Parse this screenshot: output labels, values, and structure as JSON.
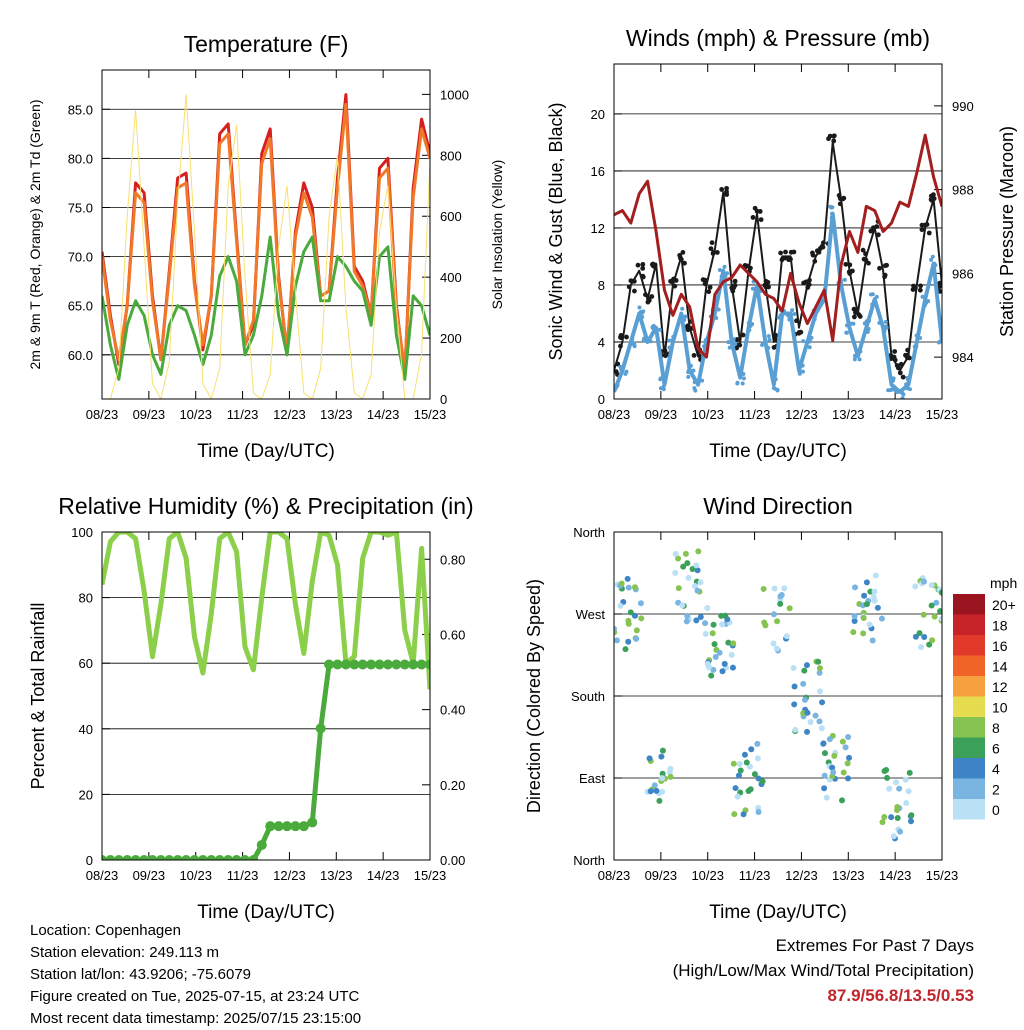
{
  "chart_data": [
    {
      "type": "line",
      "title": "Temperature (F)",
      "xlabel": "Time (Day/UTC)",
      "ylabel": "2m & 9m T (Red, Orange) & 2m Td (Green)",
      "y2label": "Solar Insolation (Yellow)",
      "x_ticks": [
        "08/23",
        "09/23",
        "10/23",
        "11/23",
        "12/23",
        "13/23",
        "14/23",
        "15/23"
      ],
      "ylim": [
        55.5,
        89.0
      ],
      "y_ticks": [
        "60.0",
        "65.0",
        "70.0",
        "75.0",
        "80.0",
        "85.0"
      ],
      "y2lim": [
        0,
        1080
      ],
      "y2_ticks": [
        "0",
        "200",
        "400",
        "600",
        "800",
        "1000"
      ],
      "grid": true,
      "series": [
        {
          "color": "#d62020",
          "values": [
            70.5,
            64.0,
            59.0,
            65.0,
            77.5,
            76.5,
            66.0,
            59.5,
            68.5,
            78.0,
            78.5,
            67.5,
            60.5,
            66.0,
            82.5,
            83.5,
            72.0,
            61.0,
            63.0,
            80.5,
            83.0,
            68.0,
            60.0,
            72.5,
            77.5,
            75.0,
            66.0,
            66.5,
            78.0,
            86.5,
            69.0,
            67.5,
            64.0,
            79.0,
            80.0,
            65.0,
            58.0,
            77.0,
            84.0,
            80.5
          ]
        },
        {
          "color": "#f07828",
          "values": [
            70.0,
            63.5,
            59.5,
            65.0,
            76.5,
            75.5,
            65.5,
            59.5,
            68.0,
            77.0,
            77.5,
            67.0,
            61.0,
            66.0,
            81.5,
            82.5,
            71.5,
            61.0,
            63.5,
            79.5,
            82.0,
            67.5,
            60.5,
            72.0,
            76.5,
            74.0,
            66.0,
            66.5,
            77.0,
            85.5,
            68.5,
            67.0,
            64.0,
            78.0,
            79.0,
            64.5,
            58.5,
            76.0,
            83.0,
            80.0
          ]
        },
        {
          "color": "#4aaa3c",
          "values": [
            66.0,
            61.0,
            57.5,
            63.0,
            65.5,
            64.0,
            60.0,
            58.0,
            63.0,
            65.0,
            64.5,
            62.0,
            59.0,
            62.0,
            68.0,
            70.0,
            67.5,
            60.0,
            62.0,
            66.0,
            72.0,
            64.0,
            60.0,
            67.0,
            70.5,
            72.0,
            65.5,
            65.5,
            70.0,
            69.0,
            67.5,
            66.5,
            63.0,
            70.0,
            71.0,
            62.0,
            57.5,
            66.0,
            65.0,
            62.0
          ]
        },
        {
          "color": "#f7e070",
          "axis": "right",
          "values": [
            0,
            0,
            100,
            600,
            950,
            500,
            50,
            0,
            120,
            650,
            1000,
            550,
            50,
            0,
            100,
            700,
            900,
            400,
            20,
            0,
            80,
            500,
            700,
            350,
            20,
            0,
            100,
            600,
            800,
            300,
            20,
            0,
            80,
            550,
            700,
            300,
            0,
            0,
            150,
            780
          ]
        }
      ]
    },
    {
      "type": "scatter",
      "title": "Winds (mph) & Pressure (mb)",
      "xlabel": "Time (Day/UTC)",
      "ylabel": "Sonic Wind & Gust (Blue, Black)",
      "y2label": "Station Pressure (Maroon)",
      "x_ticks": [
        "08/23",
        "09/23",
        "10/23",
        "11/23",
        "12/23",
        "13/23",
        "14/23",
        "15/23"
      ],
      "ylim": [
        0,
        23.5
      ],
      "y_ticks": [
        "0",
        "4",
        "8",
        "12",
        "16",
        "20"
      ],
      "y2lim": [
        983.0,
        991.0
      ],
      "y2_ticks": [
        "984",
        "986",
        "988",
        "990"
      ],
      "grid": true,
      "series": [
        {
          "color": "#1a1a1a",
          "values": [
            2.0,
            4.0,
            8.0,
            9.0,
            7.0,
            9.5,
            3.0,
            8.0,
            10.0,
            5.0,
            3.0,
            8.0,
            10.5,
            14.5,
            8.0,
            4.0,
            9.0,
            13.0,
            8.0,
            4.0,
            10.0,
            10.0,
            5.0,
            8.0,
            10.0,
            11.0,
            18.0,
            14.0,
            9.0,
            6.0,
            10.0,
            12.0,
            9.0,
            3.0,
            2.0,
            3.0,
            8.0,
            12.0,
            14.0,
            8.0
          ]
        },
        {
          "color": "#5a9fd4",
          "values": [
            0.5,
            2.0,
            4.0,
            6.0,
            4.0,
            5.0,
            1.0,
            4.0,
            6.0,
            2.0,
            1.0,
            4.0,
            6.0,
            9.0,
            4.0,
            1.5,
            5.0,
            8.0,
            4.0,
            1.0,
            6.0,
            6.0,
            2.0,
            4.0,
            6.0,
            7.0,
            13.0,
            8.0,
            5.0,
            3.0,
            5.0,
            7.0,
            5.0,
            1.0,
            0.5,
            1.0,
            4.0,
            7.0,
            9.5,
            4.0
          ]
        },
        {
          "color": "#a31e1e",
          "axis": "right",
          "values": [
            987.4,
            987.5,
            987.2,
            987.9,
            988.2,
            987.0,
            985.6,
            985.0,
            985.5,
            985.2,
            984.2,
            984.0,
            985.5,
            985.8,
            985.9,
            986.2,
            986.0,
            985.8,
            985.5,
            985.4,
            985.1,
            986.0,
            985.3,
            984.8,
            985.2,
            985.6,
            984.4,
            986.2,
            987.0,
            986.5,
            987.6,
            987.5,
            987.0,
            987.2,
            987.7,
            987.6,
            988.4,
            989.3,
            988.3,
            987.6
          ]
        }
      ]
    },
    {
      "type": "line",
      "title": "Relative Humidity (%) & Precipitation (in)",
      "xlabel": "Time (Day/UTC)",
      "ylabel": "Percent & Total Rainfall",
      "x_ticks": [
        "08/23",
        "09/23",
        "10/23",
        "11/23",
        "12/23",
        "13/23",
        "14/23",
        "15/23"
      ],
      "ylim": [
        0,
        100
      ],
      "y_ticks": [
        "0",
        "20",
        "40",
        "60",
        "80",
        "100"
      ],
      "y2lim": [
        0,
        0.8725
      ],
      "y2_ticks": [
        "0.00",
        "0.20",
        "0.40",
        "0.60",
        "0.80"
      ],
      "grid": true,
      "series": [
        {
          "color": "#8ccf4a",
          "values": [
            84,
            97,
            100,
            100,
            98,
            82,
            62,
            78,
            98,
            100,
            92,
            68,
            57,
            75,
            98,
            100,
            94,
            65,
            58,
            80,
            100,
            100,
            98,
            78,
            63,
            85,
            100,
            99,
            90,
            60,
            62,
            92,
            100,
            100,
            99,
            100,
            70,
            60,
            95,
            52
          ]
        },
        {
          "color": "#4aaa3c",
          "axis": "right",
          "values": [
            0,
            0,
            0,
            0,
            0,
            0,
            0,
            0,
            0,
            0,
            0,
            0,
            0,
            0,
            0,
            0,
            0,
            0,
            0,
            0.04,
            0.09,
            0.09,
            0.09,
            0.09,
            0.09,
            0.1,
            0.35,
            0.52,
            0.52,
            0.52,
            0.52,
            0.52,
            0.52,
            0.52,
            0.52,
            0.52,
            0.52,
            0.52,
            0.52,
            0.52
          ]
        }
      ]
    },
    {
      "type": "scatter",
      "title": "Wind Direction",
      "xlabel": "Time (Day/UTC)",
      "ylabel": "Direction (Colored By Speed)",
      "x_ticks": [
        "08/23",
        "09/23",
        "10/23",
        "11/23",
        "12/23",
        "13/23",
        "14/23",
        "15/23"
      ],
      "y_ticks": [
        "North",
        "East",
        "South",
        "West",
        "North"
      ],
      "ylim": [
        0,
        360
      ],
      "grid": true,
      "legend": {
        "title": "mph",
        "labels": [
          "20+",
          "18",
          "16",
          "14",
          "12",
          "10",
          "8",
          "6",
          "4",
          "2",
          "0"
        ],
        "colors": [
          "#9b1520",
          "#c7242a",
          "#e23a2a",
          "#f06428",
          "#f7a040",
          "#e6dc50",
          "#86c350",
          "#3aa05a",
          "#3d85c6",
          "#7ab4e0",
          "#b9e0f5"
        ],
        "placement": "right"
      }
    }
  ],
  "footer": {
    "location": "Location: Copenhagen",
    "elevation": "Station elevation: 249.113 m",
    "latlon": "Station lat/lon: 43.9206; -75.6079",
    "created": "Figure created on Tue, 2025-07-15, at 23:24 UTC",
    "recent": "Most recent data timestamp: 2025/07/15 23:15:00"
  },
  "extremes": {
    "heading": "Extremes For Past 7 Days",
    "subheading": "(High/Low/Max Wind/Total Precipitation)",
    "value": "87.9/56.8/13.5/0.53"
  }
}
